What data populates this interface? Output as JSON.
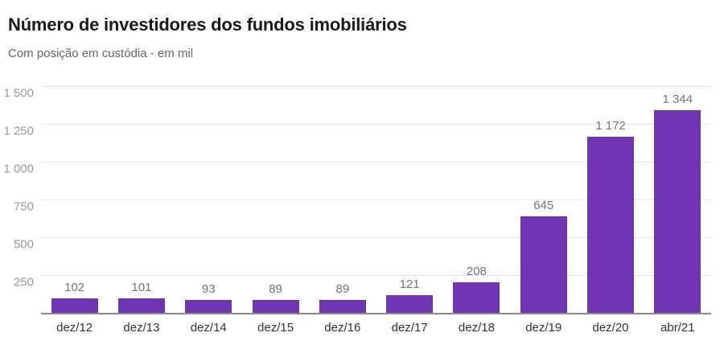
{
  "header": {
    "title": "Número de investidores dos fundos imobiliários",
    "subtitle": "Com posição em custódia - em mil"
  },
  "chart_data": {
    "type": "bar",
    "title": "Número de investidores dos fundos imobiliários",
    "subtitle": "Com posição em custódia - em mil",
    "categories": [
      "dez/12",
      "dez/13",
      "dez/14",
      "dez/15",
      "dez/16",
      "dez/17",
      "dez/18",
      "dez/19",
      "dez/20",
      "abr/21"
    ],
    "values": [
      102,
      101,
      93,
      89,
      89,
      121,
      208,
      645,
      1172,
      1344
    ],
    "value_labels": [
      "102",
      "101",
      "93",
      "89",
      "89",
      "121",
      "208",
      "645",
      "1 172",
      "1 344"
    ],
    "xlabel": "",
    "ylabel": "",
    "ylim": [
      0,
      1500
    ],
    "yticks": [
      250,
      500,
      750,
      1000,
      1250,
      1500
    ],
    "ytick_labels": [
      "250",
      "500",
      "750",
      "1 000",
      "1 250",
      "1 500"
    ],
    "grid": true,
    "legend": false,
    "colors": {
      "bar": "#6f35b3",
      "title": "#1a1a1a",
      "subtitle": "#666666",
      "axis_line": "#8c8c8c",
      "gridline": "#e7e7e7",
      "ytick_label": "#999999",
      "value_label": "#757575",
      "x_label": "#333333",
      "background": "#ffffff"
    }
  }
}
